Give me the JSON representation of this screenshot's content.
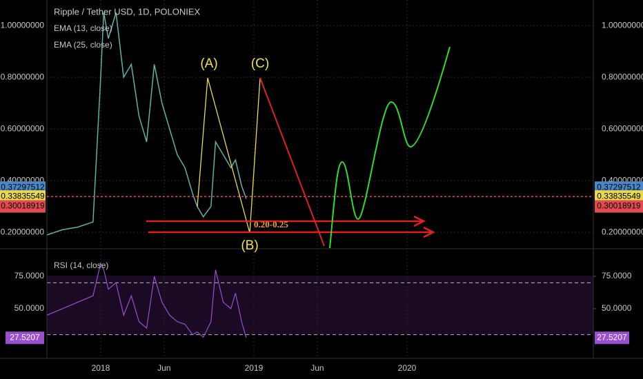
{
  "chart_data": {
    "type": "line",
    "title": "Ripple / Tether USD, 1D, POLONIEX",
    "indicators": [
      "EMA (13, close)",
      "EMA (25, close)"
    ],
    "x": [
      2017.65,
      2017.75,
      2017.85,
      2017.95,
      2018.0,
      2018.02,
      2018.05,
      2018.1,
      2018.15,
      2018.2,
      2018.25,
      2018.3,
      2018.35,
      2018.4,
      2018.45,
      2018.5,
      2018.55,
      2018.6,
      2018.63,
      2018.67,
      2018.72,
      2018.75,
      2018.8,
      2018.85,
      2018.88,
      2018.92,
      2018.95
    ],
    "values": [
      0.19,
      0.21,
      0.22,
      0.24,
      0.8,
      1.05,
      0.95,
      1.05,
      0.8,
      0.85,
      0.65,
      0.55,
      0.85,
      0.7,
      0.6,
      0.5,
      0.45,
      0.35,
      0.3,
      0.26,
      0.3,
      0.55,
      0.5,
      0.45,
      0.48,
      0.38,
      0.33
    ],
    "color": "#5fb3a8",
    "xlim": [
      2017.649,
      2021.216
    ],
    "xticks": [
      {
        "value": 2018,
        "label": "2018"
      },
      {
        "value": 2018.414,
        "label": "Jun"
      },
      {
        "value": 2019,
        "label": "2019"
      },
      {
        "value": 2019.414,
        "label": "Jun"
      },
      {
        "value": 2020,
        "label": "2020"
      }
    ],
    "ylim": [
      0.147,
      1.099
    ],
    "yticks": [
      {
        "value": 0.2,
        "label": "0.20000000"
      },
      {
        "value": 0.4,
        "label": "0.40000000"
      },
      {
        "value": 0.6,
        "label": "0.60000000"
      },
      {
        "value": 0.8,
        "label": "0.80000000"
      },
      {
        "value": 1.0,
        "label": "1.00000000"
      }
    ],
    "grid": true,
    "price_lines": [
      {
        "value": 0.37297512,
        "color": "#4a86c8"
      },
      {
        "value": 0.33835549,
        "color": "#e8d84d"
      },
      {
        "value": 0.30018919,
        "color": "#e04b52"
      }
    ],
    "annotations": [
      "(A)",
      "(B)",
      "(C)",
      "0.20-0.25"
    ],
    "rsi": {
      "title": "RSI (14, close)",
      "values": [
        45,
        50,
        55,
        60,
        85,
        80,
        65,
        70,
        45,
        60,
        40,
        35,
        75,
        55,
        45,
        40,
        38,
        30,
        32,
        28,
        40,
        80,
        55,
        50,
        62,
        40,
        27.5207
      ],
      "color": "#9a4fd0",
      "ylim": [
        11.7,
        94.1
      ],
      "yticks": [
        {
          "value": 75,
          "label": "75.0000"
        },
        {
          "value": 50,
          "label": "50.0000"
        }
      ],
      "band": [
        30,
        70
      ],
      "last_label": 27.5207
    }
  }
}
